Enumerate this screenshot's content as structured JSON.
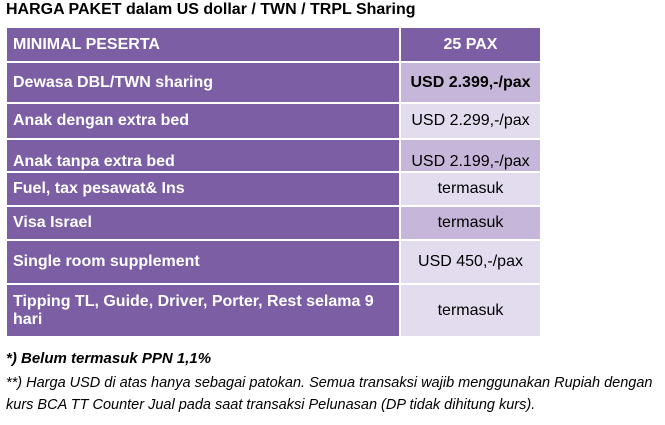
{
  "header": {
    "title": "HARGA PAKET dalam US dollar / TWN / TRPL Sharing"
  },
  "table": {
    "columns": [
      "MINIMAL PESERTA",
      "25 PAX"
    ],
    "rows": [
      [
        "Dewasa DBL/TWN sharing",
        "USD 2.399,-/pax"
      ],
      [
        "Anak dengan extra bed",
        "USD 2.299,-/pax"
      ],
      [
        "Anak tanpa extra bed",
        "USD 2.199,-/pax"
      ],
      [
        "Fuel, tax pesawat& Ins",
        "termasuk"
      ],
      [
        "Visa Israel",
        "termasuk"
      ],
      [
        "Single room supplement",
        "USD 450,-/pax"
      ],
      [
        "Tipping TL, Guide, Driver, Porter, Rest selama 9 hari",
        "termasuk"
      ]
    ]
  },
  "notes": [
    "*) Belum termasuk PPN 1,1%",
    "**) Harga USD di atas hanya sebagai patokan. Semua transaksi wajib menggunakan Rupiah dengan kurs BCA TT Counter Jual pada saat transaksi Pelunasan (DP tidak dihitung kurs)."
  ]
}
